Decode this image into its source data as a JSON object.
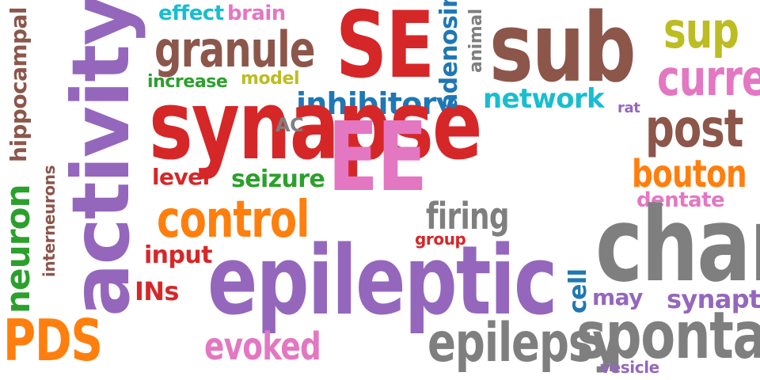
{
  "colors": {
    "red": "#d62728",
    "purple": "#9467bd",
    "pink": "#e377c2",
    "brown": "#8c564b",
    "gray": "#7f7f7f",
    "orange": "#ff7f0e",
    "blue": "#1f77b4",
    "cyan": "#17becf",
    "green": "#2ca02c",
    "olive": "#bcbd22"
  },
  "words": [
    "effect",
    "brain",
    "granule",
    "SE",
    "sub",
    "sup",
    "hippocampal",
    "activity",
    "increase",
    "model",
    "inhibitory",
    "network",
    "current",
    "synapse",
    "AC",
    "rat",
    "post",
    "EE",
    "level",
    "seizure",
    "bouton",
    "dentate",
    "control",
    "firing",
    "adenosine",
    "animal",
    "group",
    "change",
    "input",
    "cell",
    "INs",
    "epileptic",
    "may",
    "synaptic",
    "PDS",
    "evoked",
    "epilepsy",
    "spontaneous",
    "vesicle",
    "neuron",
    "interneurons"
  ]
}
